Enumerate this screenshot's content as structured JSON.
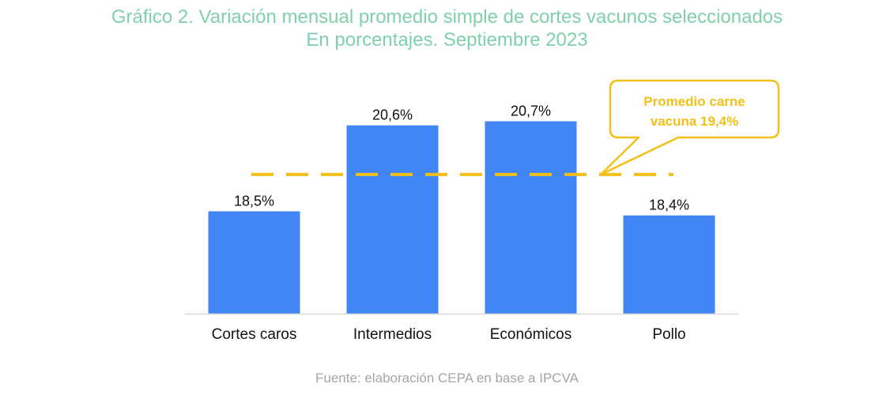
{
  "title": {
    "line1": "Gráfico 2. Variación mensual promedio simple de cortes vacunos seleccionados",
    "line2": "En porcentajes. Septiembre 2023"
  },
  "source": "Fuente: elaboración CEPA en base a IPCVA",
  "colors": {
    "title": "#7fd0ad",
    "bar": "#4285f4",
    "reference": "#f3c01a",
    "axis": "#d9d9d9",
    "text": "#111111",
    "source": "#a6a6a6"
  },
  "chart_data": {
    "type": "bar",
    "title": "Gráfico 2. Variación mensual promedio simple de cortes vacunos seleccionados",
    "subtitle": "En porcentajes. Septiembre 2023",
    "categories": [
      "Cortes caros",
      "Intermedios",
      "Económicos",
      "Pollo"
    ],
    "values": [
      18.5,
      20.6,
      20.7,
      18.4
    ],
    "value_labels": [
      "18,5%",
      "20,6%",
      "20,7%",
      "18,4%"
    ],
    "reference_line": {
      "value": 19.4,
      "label_line1": "Promedio carne",
      "label_line2": "vacuna 19,4%",
      "style": "dashed"
    },
    "ylim": [
      16.0,
      21.0
    ],
    "xlabel": "",
    "ylabel": "",
    "grid": false,
    "legend": "none"
  }
}
